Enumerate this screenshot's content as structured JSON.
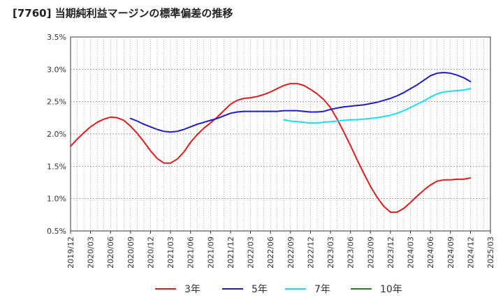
{
  "title": "[7760]  当期純利益マージンの標準偏差の推移",
  "chart_data": {
    "type": "line",
    "title": "[7760]  当期純利益マージンの標準偏差の推移",
    "xlabel": "",
    "ylabel": "",
    "ylim": [
      0.5,
      3.5
    ],
    "y_ticks": [
      "3.5%",
      "3.0%",
      "2.5%",
      "2.0%",
      "1.5%",
      "1.0%",
      "0.5%"
    ],
    "y_tick_values": [
      3.5,
      3.0,
      2.5,
      2.0,
      1.5,
      1.0,
      0.5
    ],
    "x_ticks": [
      "2019/12",
      "2020/03",
      "2020/06",
      "2020/09",
      "2020/12",
      "2021/03",
      "2021/06",
      "2021/09",
      "2021/12",
      "2022/03",
      "2022/06",
      "2022/09",
      "2022/12",
      "2023/03",
      "2023/06",
      "2023/09",
      "2023/12",
      "2024/03",
      "2024/06",
      "2024/09",
      "2024/12",
      "2025/03"
    ],
    "grid": true,
    "legend_position": "bottom",
    "series": [
      {
        "name": "3年",
        "color": "#dd1c1c",
        "values": [
          [
            "2019/12",
            1.81
          ],
          [
            "2020/01",
            1.92
          ],
          [
            "2020/02",
            2.02
          ],
          [
            "2020/03",
            2.11
          ],
          [
            "2020/04",
            2.18
          ],
          [
            "2020/05",
            2.23
          ],
          [
            "2020/06",
            2.26
          ],
          [
            "2020/07",
            2.25
          ],
          [
            "2020/08",
            2.21
          ],
          [
            "2020/09",
            2.12
          ],
          [
            "2020/10",
            2.01
          ],
          [
            "2020/11",
            1.88
          ],
          [
            "2020/12",
            1.74
          ],
          [
            "2021/01",
            1.62
          ],
          [
            "2021/02",
            1.55
          ],
          [
            "2021/03",
            1.55
          ],
          [
            "2021/04",
            1.61
          ],
          [
            "2021/05",
            1.72
          ],
          [
            "2021/06",
            1.87
          ],
          [
            "2021/07",
            1.99
          ],
          [
            "2021/08",
            2.09
          ],
          [
            "2021/09",
            2.17
          ],
          [
            "2021/10",
            2.26
          ],
          [
            "2021/11",
            2.36
          ],
          [
            "2021/12",
            2.46
          ],
          [
            "2022/01",
            2.52
          ],
          [
            "2022/02",
            2.55
          ],
          [
            "2022/03",
            2.56
          ],
          [
            "2022/04",
            2.58
          ],
          [
            "2022/05",
            2.61
          ],
          [
            "2022/06",
            2.65
          ],
          [
            "2022/07",
            2.7
          ],
          [
            "2022/08",
            2.75
          ],
          [
            "2022/09",
            2.78
          ],
          [
            "2022/10",
            2.78
          ],
          [
            "2022/11",
            2.75
          ],
          [
            "2022/12",
            2.69
          ],
          [
            "2023/01",
            2.62
          ],
          [
            "2023/02",
            2.53
          ],
          [
            "2023/03",
            2.41
          ],
          [
            "2023/04",
            2.23
          ],
          [
            "2023/05",
            2.03
          ],
          [
            "2023/06",
            1.82
          ],
          [
            "2023/07",
            1.6
          ],
          [
            "2023/08",
            1.39
          ],
          [
            "2023/09",
            1.19
          ],
          [
            "2023/10",
            1.02
          ],
          [
            "2023/11",
            0.88
          ],
          [
            "2023/12",
            0.79
          ],
          [
            "2024/01",
            0.79
          ],
          [
            "2024/02",
            0.85
          ],
          [
            "2024/03",
            0.94
          ],
          [
            "2024/04",
            1.04
          ],
          [
            "2024/05",
            1.13
          ],
          [
            "2024/06",
            1.21
          ],
          [
            "2024/07",
            1.27
          ],
          [
            "2024/08",
            1.29
          ],
          [
            "2024/09",
            1.29
          ],
          [
            "2024/10",
            1.3
          ],
          [
            "2024/11",
            1.3
          ],
          [
            "2024/12",
            1.32
          ]
        ]
      },
      {
        "name": "5年",
        "color": "#1c1cc8",
        "values": [
          [
            "2020/09",
            2.24
          ],
          [
            "2020/10",
            2.2
          ],
          [
            "2020/11",
            2.15
          ],
          [
            "2020/12",
            2.11
          ],
          [
            "2021/01",
            2.07
          ],
          [
            "2021/02",
            2.04
          ],
          [
            "2021/03",
            2.03
          ],
          [
            "2021/04",
            2.04
          ],
          [
            "2021/05",
            2.07
          ],
          [
            "2021/06",
            2.11
          ],
          [
            "2021/07",
            2.15
          ],
          [
            "2021/08",
            2.18
          ],
          [
            "2021/09",
            2.21
          ],
          [
            "2021/10",
            2.24
          ],
          [
            "2021/11",
            2.28
          ],
          [
            "2021/12",
            2.32
          ],
          [
            "2022/01",
            2.34
          ],
          [
            "2022/02",
            2.35
          ],
          [
            "2022/03",
            2.35
          ],
          [
            "2022/04",
            2.35
          ],
          [
            "2022/05",
            2.35
          ],
          [
            "2022/06",
            2.35
          ],
          [
            "2022/07",
            2.35
          ],
          [
            "2022/08",
            2.36
          ],
          [
            "2022/09",
            2.36
          ],
          [
            "2022/10",
            2.36
          ],
          [
            "2022/11",
            2.35
          ],
          [
            "2022/12",
            2.34
          ],
          [
            "2023/01",
            2.34
          ],
          [
            "2023/02",
            2.35
          ],
          [
            "2023/03",
            2.38
          ],
          [
            "2023/04",
            2.4
          ],
          [
            "2023/05",
            2.42
          ],
          [
            "2023/06",
            2.43
          ],
          [
            "2023/07",
            2.44
          ],
          [
            "2023/08",
            2.45
          ],
          [
            "2023/09",
            2.47
          ],
          [
            "2023/10",
            2.49
          ],
          [
            "2023/11",
            2.52
          ],
          [
            "2023/12",
            2.55
          ],
          [
            "2024/01",
            2.59
          ],
          [
            "2024/02",
            2.64
          ],
          [
            "2024/03",
            2.7
          ],
          [
            "2024/04",
            2.76
          ],
          [
            "2024/05",
            2.83
          ],
          [
            "2024/06",
            2.9
          ],
          [
            "2024/07",
            2.94
          ],
          [
            "2024/08",
            2.95
          ],
          [
            "2024/09",
            2.94
          ],
          [
            "2024/10",
            2.91
          ],
          [
            "2024/11",
            2.87
          ],
          [
            "2024/12",
            2.81
          ]
        ]
      },
      {
        "name": "7年",
        "color": "#1cdcf0",
        "values": [
          [
            "2022/08",
            2.22
          ],
          [
            "2022/09",
            2.2
          ],
          [
            "2022/10",
            2.19
          ],
          [
            "2022/11",
            2.18
          ],
          [
            "2022/12",
            2.17
          ],
          [
            "2023/01",
            2.17
          ],
          [
            "2023/02",
            2.18
          ],
          [
            "2023/03",
            2.19
          ],
          [
            "2023/04",
            2.2
          ],
          [
            "2023/05",
            2.21
          ],
          [
            "2023/06",
            2.22
          ],
          [
            "2023/07",
            2.22
          ],
          [
            "2023/08",
            2.23
          ],
          [
            "2023/09",
            2.24
          ],
          [
            "2023/10",
            2.25
          ],
          [
            "2023/11",
            2.27
          ],
          [
            "2023/12",
            2.29
          ],
          [
            "2024/01",
            2.32
          ],
          [
            "2024/02",
            2.36
          ],
          [
            "2024/03",
            2.41
          ],
          [
            "2024/04",
            2.46
          ],
          [
            "2024/05",
            2.51
          ],
          [
            "2024/06",
            2.57
          ],
          [
            "2024/07",
            2.62
          ],
          [
            "2024/08",
            2.65
          ],
          [
            "2024/09",
            2.66
          ],
          [
            "2024/10",
            2.67
          ],
          [
            "2024/11",
            2.68
          ],
          [
            "2024/12",
            2.7
          ]
        ]
      },
      {
        "name": "10年",
        "color": "#1c8a1c",
        "values": []
      }
    ]
  }
}
